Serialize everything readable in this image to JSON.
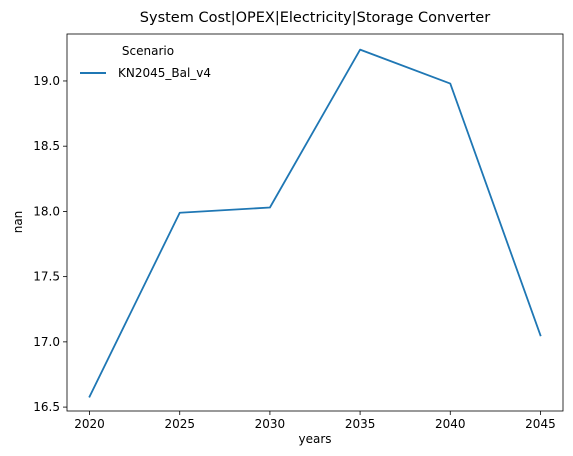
{
  "chart_data": {
    "type": "line",
    "title": "System Cost|OPEX|Electricity|Storage Converter",
    "xlabel": "years",
    "ylabel": "nan",
    "x": [
      2020,
      2025,
      2030,
      2035,
      2040,
      2045
    ],
    "xticks": [
      "2020",
      "2025",
      "2030",
      "2035",
      "2040",
      "2045"
    ],
    "yticks": [
      "16.5",
      "17.0",
      "17.5",
      "18.0",
      "18.5",
      "19.0"
    ],
    "ylim": [
      16.47,
      19.36
    ],
    "xlim": [
      2018.75,
      2046.25
    ],
    "grid": false,
    "legend": {
      "title": "Scenario",
      "placement": "top-left"
    },
    "series": [
      {
        "name": "KN2045_Bal_v4",
        "color": "#1f77b4",
        "values": [
          16.58,
          17.99,
          18.03,
          19.24,
          18.98,
          17.05
        ]
      }
    ]
  }
}
